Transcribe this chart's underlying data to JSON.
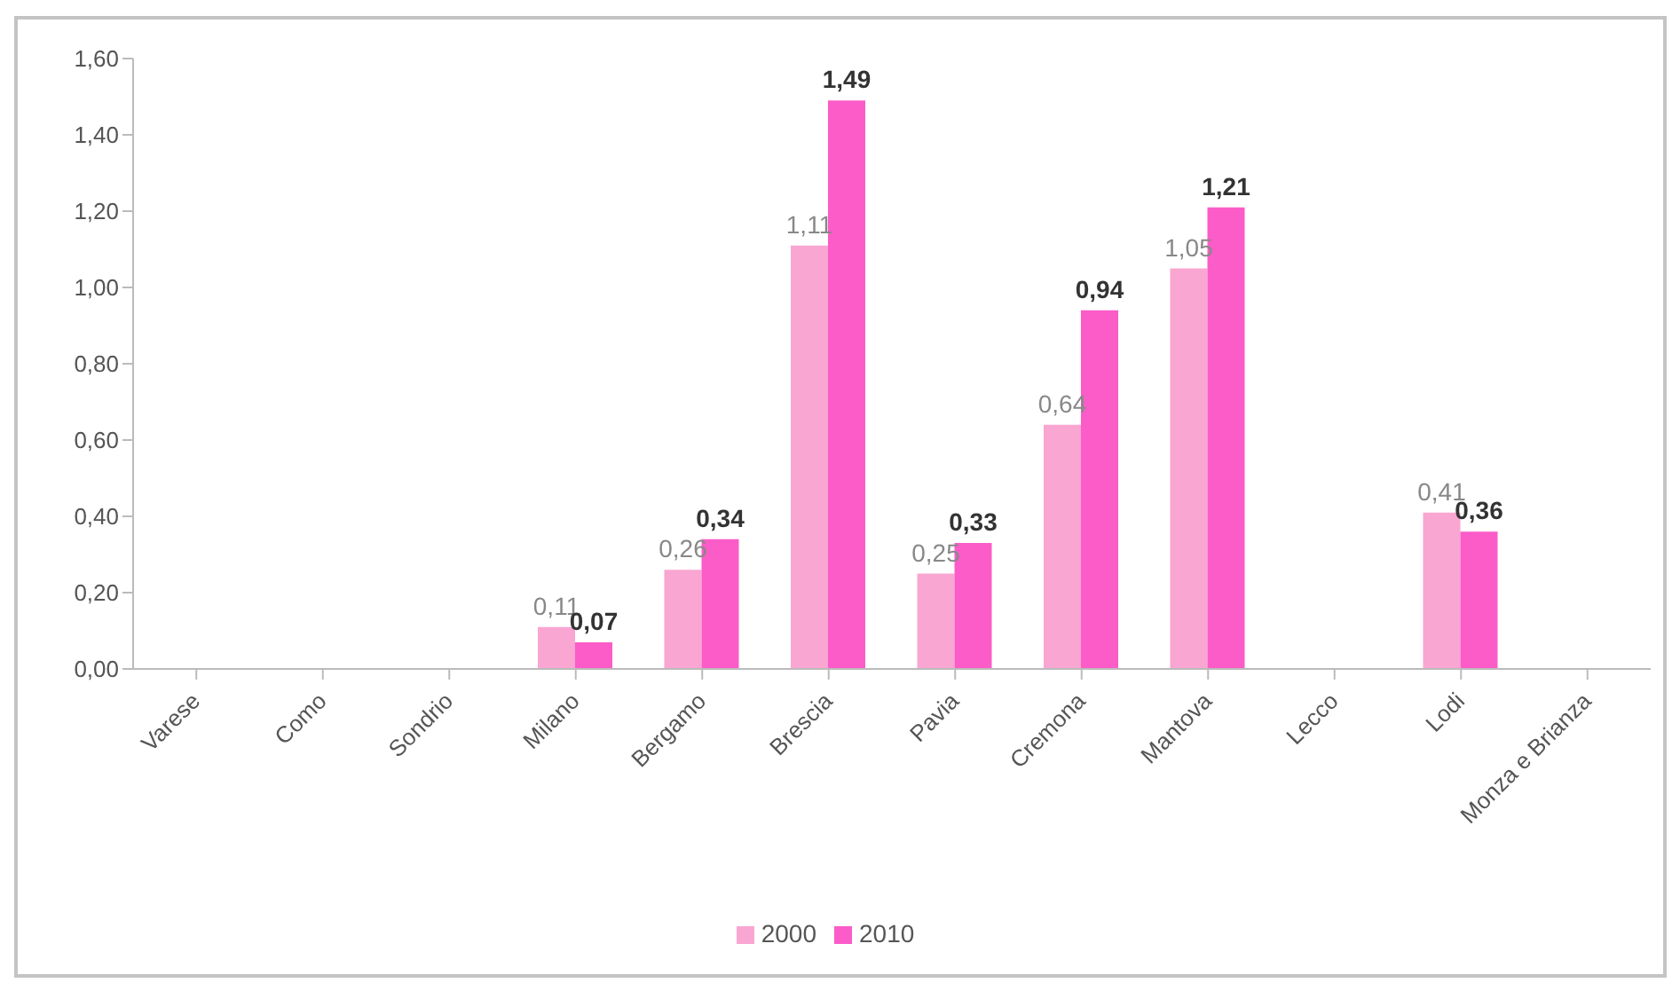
{
  "chart_data": {
    "type": "bar",
    "categories": [
      "Varese",
      "Como",
      "Sondrio",
      "Milano",
      "Bergamo",
      "Brescia",
      "Pavia",
      "Cremona",
      "Mantova",
      "Lecco",
      "Lodi",
      "Monza e Brianza"
    ],
    "series": [
      {
        "name": "2000",
        "color": "#f9a6d2",
        "values": [
          null,
          null,
          null,
          0.11,
          0.26,
          1.11,
          0.25,
          0.64,
          1.05,
          null,
          0.41,
          null
        ],
        "value_labels": [
          null,
          null,
          null,
          "0,11",
          "0,26",
          "1,11",
          "0,25",
          "0,64",
          "1,05",
          null,
          "0,41",
          null
        ]
      },
      {
        "name": "2010",
        "color": "#fb5cc8",
        "values": [
          null,
          null,
          null,
          0.07,
          0.34,
          1.49,
          0.33,
          0.94,
          1.21,
          null,
          0.36,
          null
        ],
        "value_labels": [
          null,
          null,
          null,
          "0,07",
          "0,34",
          "1,49",
          "0,33",
          "0,94",
          "1,21",
          null,
          "0,36",
          null
        ]
      }
    ],
    "ylim": [
      0,
      1.6
    ],
    "yticks": [
      {
        "value": 0,
        "label": "0,00"
      },
      {
        "value": 0.2,
        "label": "0,20"
      },
      {
        "value": 0.4,
        "label": "0,40"
      },
      {
        "value": 0.6,
        "label": "0,60"
      },
      {
        "value": 0.8,
        "label": "0,80"
      },
      {
        "value": 1,
        "label": "1,00"
      },
      {
        "value": 1.2,
        "label": "1,20"
      },
      {
        "value": 1.4,
        "label": "1,40"
      },
      {
        "value": 1.6,
        "label": "1,60"
      }
    ],
    "legend": "bottom"
  }
}
